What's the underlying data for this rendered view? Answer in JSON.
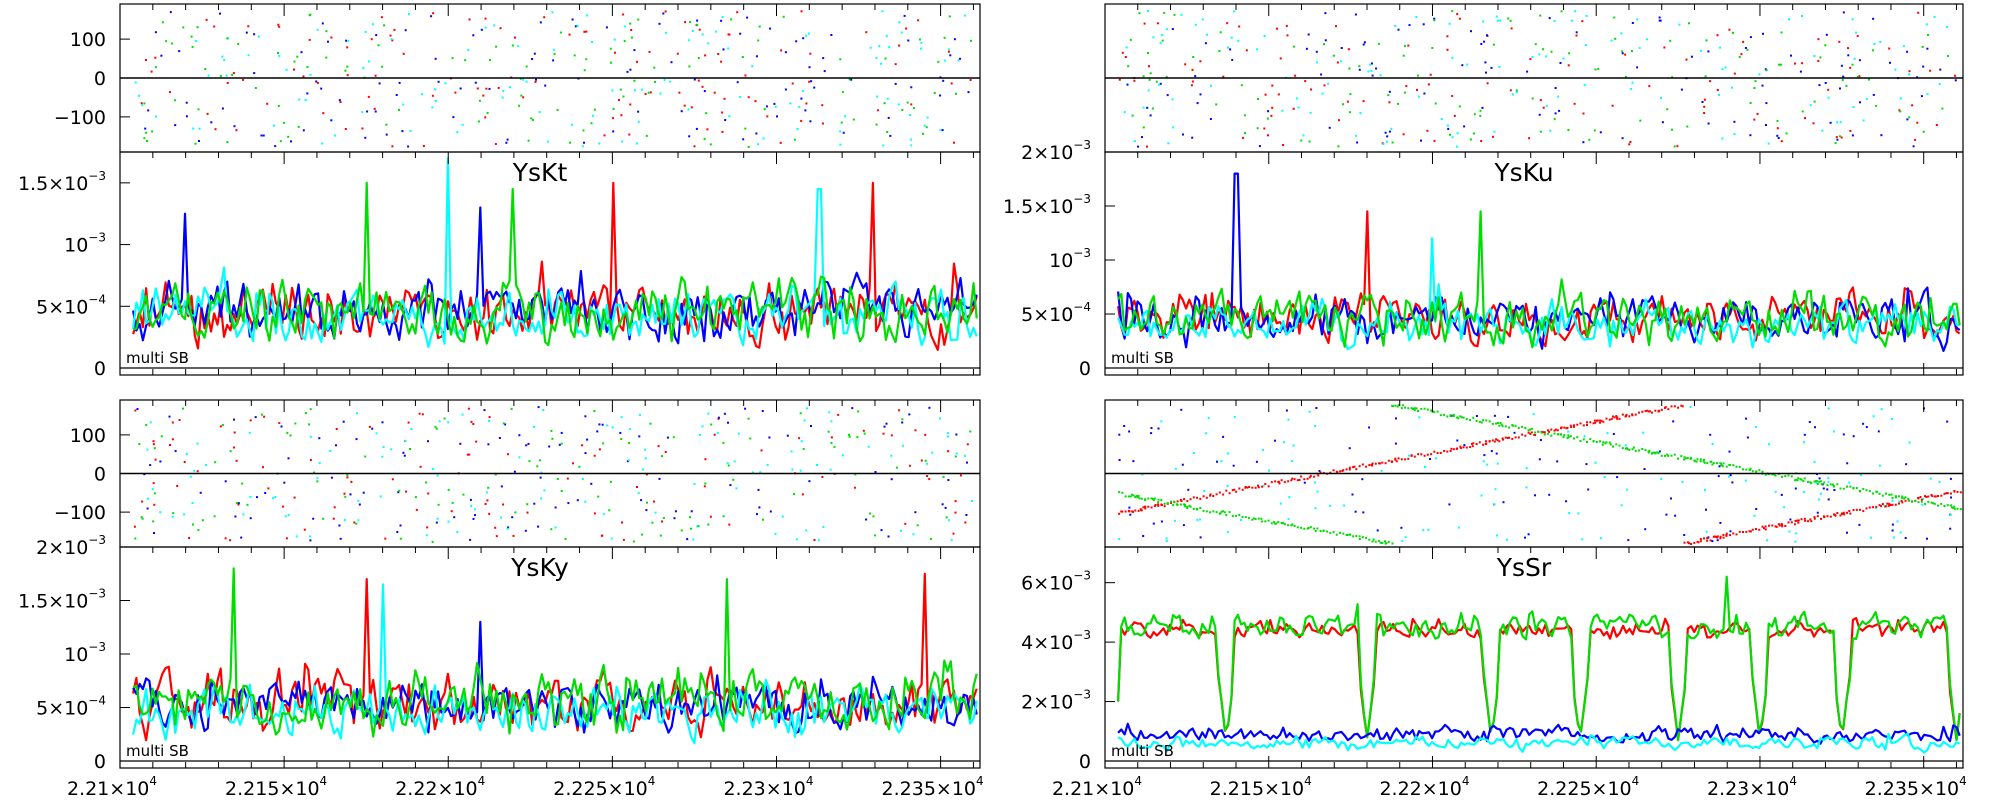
{
  "chart_data": [
    {
      "type": "line",
      "title": "YsKt",
      "annotation": "multi SB",
      "x_range": [
        22100,
        22362
      ],
      "x_ticks": [
        22100,
        22150,
        22200,
        22250,
        22300,
        22350
      ],
      "x_tick_labels": [],
      "phase_panel": {
        "type": "scatter",
        "ylim": [
          -180,
          180
        ],
        "y_ticks": [
          100,
          0,
          -100
        ],
        "y_tick_labels": [
          "100",
          "0",
          "−100"
        ]
      },
      "amp_panel": {
        "ylim": [
          0,
          0.00175
        ],
        "y_ticks": [
          0,
          0.0005,
          0.001,
          0.0015
        ],
        "y_tick_labels": [
          [
            "0",
            ""
          ],
          [
            "5×10",
            "−4"
          ],
          [
            "10",
            "−3"
          ],
          [
            "1.5×10",
            "−3"
          ]
        ]
      },
      "series": [
        {
          "color": "#ff0000",
          "mean": 0.00045,
          "spread": 0.0003,
          "peaks": [
            [
              22250,
              0.0015
            ],
            [
              22329,
              0.0015
            ]
          ]
        },
        {
          "color": "#0000ff",
          "mean": 0.00045,
          "spread": 0.0003,
          "peaks": [
            [
              22120,
              0.00125
            ],
            [
              22210,
              0.0013
            ]
          ]
        },
        {
          "color": "#00ffff",
          "mean": 0.0004,
          "spread": 0.00028,
          "peaks": [
            [
              22200,
              0.0017
            ],
            [
              22313,
              0.00145
            ]
          ]
        },
        {
          "color": "#00dd00",
          "mean": 0.00045,
          "spread": 0.0003,
          "peaks": [
            [
              22175,
              0.0015
            ],
            [
              22220,
              0.00145
            ]
          ]
        }
      ]
    },
    {
      "type": "line",
      "title": "YsKu",
      "annotation": "multi SB",
      "x_range": [
        22100,
        22362
      ],
      "x_ticks": [
        22100,
        22150,
        22200,
        22250,
        22300,
        22350
      ],
      "x_tick_labels": [],
      "phase_panel": {
        "type": "scatter",
        "ylim": [
          -180,
          180
        ],
        "y_ticks": [],
        "y_tick_labels": []
      },
      "amp_panel": {
        "ylim": [
          0,
          0.002
        ],
        "y_ticks": [
          0,
          0.0005,
          0.001,
          0.0015,
          0.002
        ],
        "y_tick_labels": [
          [
            "0",
            ""
          ],
          [
            "5×10",
            "−4"
          ],
          [
            "10",
            "−3"
          ],
          [
            "1.5×10",
            "−3"
          ],
          [
            "2×10",
            "−3"
          ]
        ]
      },
      "series": [
        {
          "color": "#ff0000",
          "mean": 0.00045,
          "spread": 0.00028,
          "peaks": [
            [
              22180,
              0.00145
            ]
          ]
        },
        {
          "color": "#0000ff",
          "mean": 0.00045,
          "spread": 0.00028,
          "peaks": [
            [
              22140,
              0.0018
            ]
          ]
        },
        {
          "color": "#00ffff",
          "mean": 0.0004,
          "spread": 0.00025,
          "peaks": [
            [
              22200,
              0.0012
            ]
          ]
        },
        {
          "color": "#00dd00",
          "mean": 0.00045,
          "spread": 0.00028,
          "peaks": [
            [
              22215,
              0.00145
            ]
          ]
        }
      ]
    },
    {
      "type": "line",
      "title": "YsKy",
      "annotation": "multi SB",
      "x_range": [
        22100,
        22362
      ],
      "x_ticks": [
        22100,
        22150,
        22200,
        22250,
        22300,
        22350
      ],
      "x_tick_labels": [
        "2.21×10",
        "2.215×10",
        "2.22×10",
        "2.225×10",
        "2.23×10",
        "2.235×10"
      ],
      "x_tick_exponent": "4",
      "phase_panel": {
        "type": "scatter",
        "ylim": [
          -180,
          180
        ],
        "y_ticks": [
          100,
          0,
          -100
        ],
        "y_tick_labels": [
          "100",
          "0",
          "−100"
        ]
      },
      "amp_panel": {
        "ylim": [
          0,
          0.002
        ],
        "y_ticks": [
          0,
          0.0005,
          0.001,
          0.0015,
          0.002
        ],
        "y_tick_labels": [
          [
            "0",
            ""
          ],
          [
            "5×10",
            "−4"
          ],
          [
            "10",
            "−3"
          ],
          [
            "1.5×10",
            "−3"
          ],
          [
            "2×10",
            "−3"
          ]
        ]
      },
      "series": [
        {
          "color": "#ff0000",
          "mean": 0.00055,
          "spread": 0.00035,
          "peaks": [
            [
              22175,
              0.0017
            ],
            [
              22345,
              0.00175
            ]
          ]
        },
        {
          "color": "#0000ff",
          "mean": 0.0005,
          "spread": 0.0003,
          "peaks": [
            [
              22210,
              0.0013
            ]
          ]
        },
        {
          "color": "#00ffff",
          "mean": 0.00045,
          "spread": 0.0003,
          "peaks": [
            [
              22180,
              0.00165
            ]
          ]
        },
        {
          "color": "#00dd00",
          "mean": 0.00055,
          "spread": 0.00035,
          "peaks": [
            [
              22135,
              0.0018
            ],
            [
              22285,
              0.0017
            ]
          ]
        }
      ]
    },
    {
      "type": "line",
      "title": "YsSr",
      "annotation": "multi SB",
      "x_range": [
        22100,
        22362
      ],
      "x_ticks": [
        22100,
        22150,
        22200,
        22250,
        22300,
        22350
      ],
      "x_tick_labels": [
        "2.21×10",
        "2.215×10",
        "2.22×10",
        "2.225×10",
        "2.23×10",
        "2.235×10"
      ],
      "x_tick_exponent": "4",
      "phase_panel": {
        "type": "scatter",
        "ylim": [
          -180,
          180
        ],
        "y_ticks": [],
        "y_tick_labels": [],
        "drift": true
      },
      "amp_panel": {
        "ylim": [
          0,
          0.0072
        ],
        "y_ticks": [
          0,
          0.002,
          0.004,
          0.006
        ],
        "y_tick_labels": [
          [
            "0",
            ""
          ],
          [
            "2×10",
            "−3"
          ],
          [
            "4×10",
            "−3"
          ],
          [
            "6×10",
            "−3"
          ]
        ]
      },
      "dips": [
        22137,
        22180,
        22218,
        22245,
        22275,
        22300,
        22325,
        22360
      ],
      "series": [
        {
          "color": "#ff0000",
          "mean": 0.0044,
          "spread": 0.0004,
          "peaks": []
        },
        {
          "color": "#00dd00",
          "mean": 0.0045,
          "spread": 0.0006,
          "peaks": [
            [
              22290,
              0.0062
            ]
          ]
        },
        {
          "color": "#0000ff",
          "mean": 0.0009,
          "spread": 0.00035,
          "peaks": []
        },
        {
          "color": "#00ffff",
          "mean": 0.0006,
          "spread": 0.0003,
          "peaks": []
        }
      ]
    }
  ]
}
